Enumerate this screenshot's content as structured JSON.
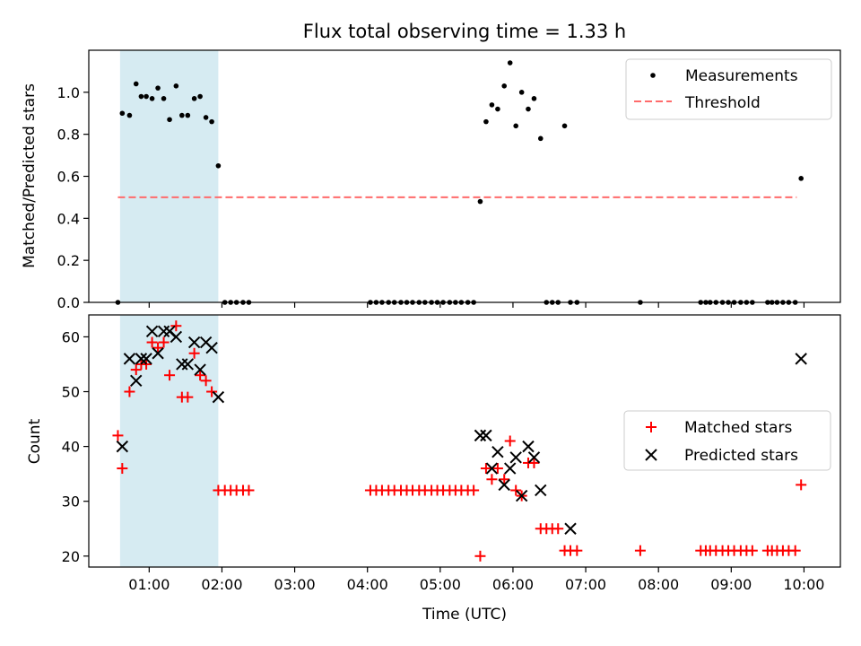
{
  "chart_data": [
    {
      "type": "scatter",
      "panel": "top",
      "title": "Flux total observing time = 1.33 h",
      "xlabel": "",
      "ylabel": "Matched/Predicted stars",
      "xlim": [
        0.17,
        10.5
      ],
      "ylim": [
        0.0,
        1.2
      ],
      "yticks": [
        0.0,
        0.2,
        0.4,
        0.6,
        0.8,
        1.0
      ],
      "xticks_hours": [
        1,
        2,
        3,
        4,
        5,
        6,
        7,
        8,
        9,
        10
      ],
      "shaded_region": {
        "from": 0.6,
        "to": 1.95,
        "color": "#add8e6"
      },
      "legend": {
        "position": "top-right",
        "entries": [
          "Measurements",
          "Threshold"
        ]
      },
      "threshold": {
        "name": "Threshold",
        "y": 0.5,
        "x_from": 0.57,
        "x_to": 9.9,
        "color": "#ff6b6b"
      },
      "series": [
        {
          "name": "Measurements",
          "color": "#000000",
          "x": [
            0.57,
            0.63,
            0.73,
            0.82,
            0.89,
            0.96,
            1.04,
            1.12,
            1.2,
            1.28,
            1.37,
            1.45,
            1.53,
            1.62,
            1.7,
            1.78,
            1.86,
            1.95,
            2.04,
            2.12,
            2.2,
            2.29,
            2.37,
            4.04,
            4.12,
            4.2,
            4.29,
            4.37,
            4.46,
            4.54,
            4.62,
            4.71,
            4.79,
            4.88,
            4.96,
            5.04,
            5.13,
            5.21,
            5.29,
            5.38,
            5.46,
            5.55,
            5.63,
            5.71,
            5.79,
            5.88,
            5.96,
            6.04,
            6.12,
            6.21,
            6.29,
            6.38,
            6.46,
            6.54,
            6.62,
            6.71,
            6.79,
            6.88,
            7.75,
            8.58,
            8.65,
            8.71,
            8.79,
            8.88,
            8.96,
            9.04,
            9.13,
            9.21,
            9.29,
            9.5,
            9.56,
            9.63,
            9.71,
            9.79,
            9.88,
            9.96
          ],
          "y": [
            0.0,
            0.9,
            0.89,
            1.04,
            0.98,
            0.98,
            0.97,
            1.02,
            0.97,
            0.87,
            1.03,
            0.89,
            0.89,
            0.97,
            0.98,
            0.88,
            0.86,
            0.65,
            0.0,
            0.0,
            0.0,
            0.0,
            0.0,
            0.0,
            0.0,
            0.0,
            0.0,
            0.0,
            0.0,
            0.0,
            0.0,
            0.0,
            0.0,
            0.0,
            0.0,
            0.0,
            0.0,
            0.0,
            0.0,
            0.0,
            0.0,
            0.48,
            0.86,
            0.94,
            0.92,
            1.03,
            1.14,
            0.84,
            1.0,
            0.92,
            0.97,
            0.78,
            0.0,
            0.0,
            0.0,
            0.84,
            0.0,
            0.0,
            0.0,
            0.0,
            0.0,
            0.0,
            0.0,
            0.0,
            0.0,
            0.0,
            0.0,
            0.0,
            0.0,
            0.0,
            0.0,
            0.0,
            0.0,
            0.0,
            0.0,
            0.59
          ]
        }
      ]
    },
    {
      "type": "scatter",
      "panel": "bottom",
      "xlabel": "Time (UTC)",
      "ylabel": "Count",
      "xlim": [
        0.17,
        10.5
      ],
      "ylim": [
        18,
        64
      ],
      "yticks": [
        20,
        30,
        40,
        50,
        60
      ],
      "xticks": [
        "01:00",
        "02:00",
        "03:00",
        "04:00",
        "05:00",
        "06:00",
        "07:00",
        "08:00",
        "09:00",
        "10:00"
      ],
      "xticks_hours": [
        1,
        2,
        3,
        4,
        5,
        6,
        7,
        8,
        9,
        10
      ],
      "shaded_region": {
        "from": 0.6,
        "to": 1.95,
        "color": "#add8e6"
      },
      "legend": {
        "position": "center-right",
        "entries": [
          "Matched stars",
          "Predicted stars"
        ]
      },
      "series": [
        {
          "name": "Matched stars",
          "color": "#ff0000",
          "marker": "+",
          "x": [
            0.57,
            0.63,
            0.73,
            0.82,
            0.89,
            0.96,
            1.04,
            1.12,
            1.2,
            1.28,
            1.37,
            1.45,
            1.53,
            1.62,
            1.7,
            1.78,
            1.86,
            1.95,
            2.04,
            2.12,
            2.2,
            2.29,
            2.37,
            4.04,
            4.12,
            4.2,
            4.29,
            4.37,
            4.46,
            4.54,
            4.62,
            4.71,
            4.79,
            4.88,
            4.96,
            5.04,
            5.13,
            5.21,
            5.29,
            5.38,
            5.46,
            5.55,
            5.63,
            5.71,
            5.79,
            5.88,
            5.96,
            6.04,
            6.12,
            6.21,
            6.29,
            6.38,
            6.46,
            6.54,
            6.62,
            6.71,
            6.79,
            6.88,
            7.75,
            8.58,
            8.65,
            8.71,
            8.79,
            8.88,
            8.96,
            9.04,
            9.13,
            9.21,
            9.29,
            9.5,
            9.56,
            9.63,
            9.71,
            9.79,
            9.88,
            9.96
          ],
          "y": [
            42,
            36,
            50,
            54,
            55,
            55,
            59,
            58,
            59,
            53,
            62,
            49,
            49,
            57,
            53,
            52,
            50,
            32,
            32,
            32,
            32,
            32,
            32,
            32,
            32,
            32,
            32,
            32,
            32,
            32,
            32,
            32,
            32,
            32,
            32,
            32,
            32,
            32,
            32,
            32,
            32,
            20,
            36,
            34,
            36,
            34,
            41,
            32,
            31,
            37,
            37,
            25,
            25,
            25,
            25,
            21,
            21,
            21,
            21,
            21,
            21,
            21,
            21,
            21,
            21,
            21,
            21,
            21,
            21,
            21,
            21,
            21,
            21,
            21,
            21,
            33
          ]
        },
        {
          "name": "Predicted stars",
          "color": "#000000",
          "marker": "x",
          "x": [
            0.63,
            0.73,
            0.82,
            0.89,
            0.96,
            1.04,
            1.12,
            1.2,
            1.28,
            1.37,
            1.45,
            1.53,
            1.62,
            1.7,
            1.78,
            1.86,
            1.95,
            5.55,
            5.63,
            5.71,
            5.79,
            5.88,
            5.96,
            6.04,
            6.12,
            6.21,
            6.29,
            6.38,
            6.79,
            9.96
          ],
          "y": [
            40,
            56,
            52,
            56,
            56,
            61,
            57,
            61,
            61,
            60,
            55,
            55,
            59,
            54,
            59,
            58,
            49,
            42,
            42,
            36,
            39,
            33,
            36,
            38,
            31,
            40,
            38,
            32,
            25,
            56
          ]
        }
      ]
    }
  ]
}
